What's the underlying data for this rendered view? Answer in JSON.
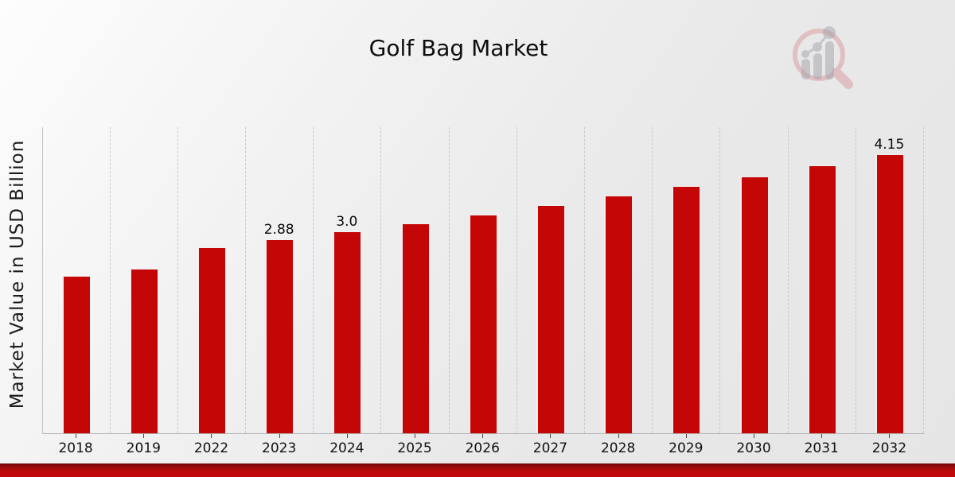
{
  "title": "Golf Bag Market",
  "chart_data": {
    "type": "bar",
    "title": "Golf Bag Market",
    "xlabel": "",
    "ylabel": "Market Value in USD Billion",
    "categories": [
      "2018",
      "2019",
      "2022",
      "2023",
      "2024",
      "2025",
      "2026",
      "2027",
      "2028",
      "2029",
      "2030",
      "2031",
      "2032"
    ],
    "values": [
      2.34,
      2.45,
      2.77,
      2.88,
      3.0,
      3.12,
      3.25,
      3.39,
      3.53,
      3.67,
      3.82,
      3.98,
      4.15
    ],
    "data_labels": {
      "2023": "2.88",
      "2024": "3.0",
      "2032": "4.15"
    },
    "ylim": [
      0,
      4.55
    ],
    "grid": "vertical-dashed",
    "legend": "none",
    "bar_color": "#c50606"
  },
  "colors": {
    "bar": "#c50606",
    "bar_edge_highlight": "#f0eeee",
    "bottom_band": "#bd0b0b",
    "background_light": "#fdfdfd",
    "background_dark": "#e5e5e5",
    "gridline": "#c7c7c7",
    "baseline": "#b2b2b2",
    "text": "#111111",
    "watermark_ring": "#d2777c",
    "watermark_bars": "#a3a3ab"
  },
  "icons": {
    "watermark": "market-research-future-logo-icon"
  }
}
